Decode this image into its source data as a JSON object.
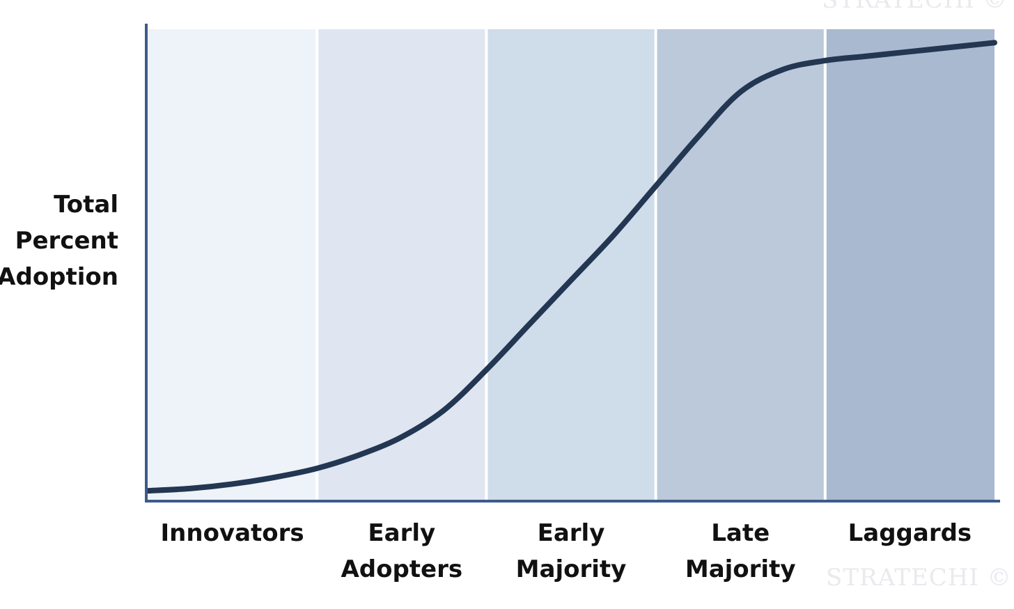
{
  "chart_data": {
    "type": "line",
    "title": "",
    "ylabel_lines": [
      "Total",
      "Percent",
      "Adoption"
    ],
    "categories": [
      {
        "lines": [
          "Innovators"
        ],
        "color": "#eef3f9"
      },
      {
        "lines": [
          "Early",
          "Adopters"
        ],
        "color": "#dfe6f1"
      },
      {
        "lines": [
          "Early",
          "Majority"
        ],
        "color": "#cfdcea"
      },
      {
        "lines": [
          "Late",
          "Majority"
        ],
        "color": "#bcc9db"
      },
      {
        "lines": [
          "Laggards"
        ],
        "color": "#a9b9cf"
      }
    ],
    "x": [
      0,
      0.25,
      0.5,
      0.75,
      1,
      1.25,
      1.5,
      1.75,
      2,
      2.25,
      2.5,
      2.75,
      3,
      3.25,
      3.5,
      3.75,
      4,
      4.25,
      4.5,
      4.75,
      5
    ],
    "y": [
      0.02,
      0.025,
      0.035,
      0.05,
      0.07,
      0.1,
      0.14,
      0.2,
      0.29,
      0.39,
      0.49,
      0.59,
      0.7,
      0.81,
      0.91,
      0.96,
      0.98,
      0.99,
      1.0,
      1.01,
      1.02
    ],
    "xlim": [
      0,
      5
    ],
    "ylim": [
      0,
      1.05
    ],
    "grid": false,
    "axis_color": "#3e5a8c",
    "line_color": "#233652"
  },
  "watermark": {
    "text": "STRATECHI ©"
  }
}
